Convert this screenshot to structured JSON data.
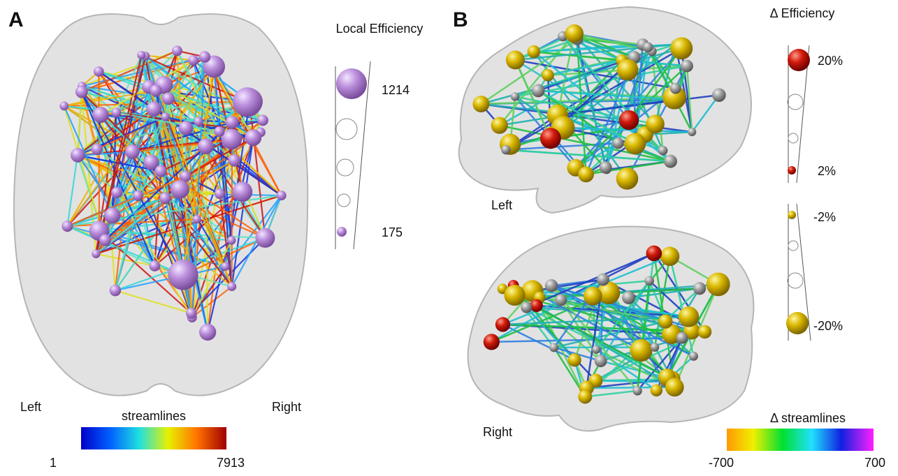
{
  "panel_a": {
    "label": "A",
    "legend_title": "Local Efficiency",
    "legend_max": "1214",
    "legend_min": "175",
    "side_left": "Left",
    "side_right": "Right",
    "colorbar_title": "streamlines",
    "colorbar_min": "1",
    "colorbar_max": "7913"
  },
  "panel_b": {
    "label": "B",
    "legend_title": "Δ Efficiency",
    "legend_labels": [
      "20%",
      "2%",
      "-2%",
      "-20%"
    ],
    "view_top": "Left",
    "view_bottom": "Right",
    "colorbar_title": "Δ streamlines",
    "colorbar_min": "-700",
    "colorbar_max": "700"
  }
}
